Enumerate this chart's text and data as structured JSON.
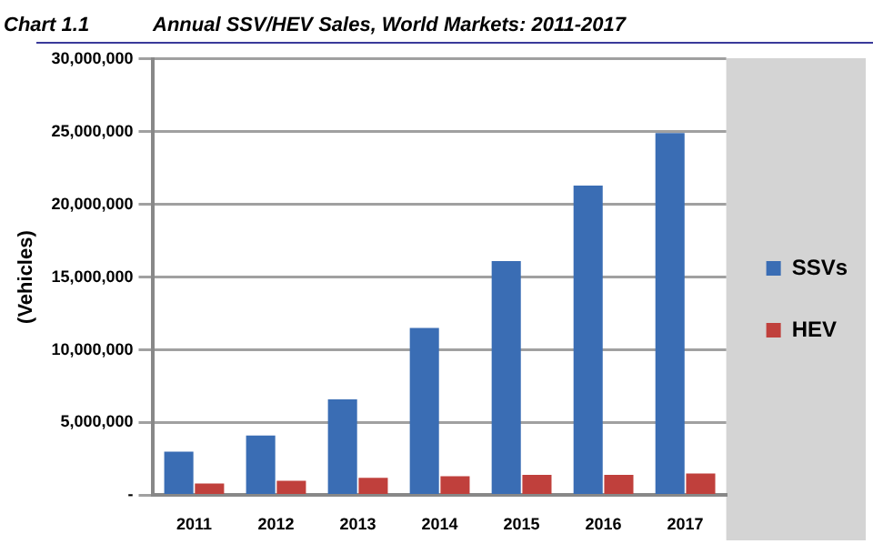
{
  "chart_data": {
    "type": "bar",
    "title": "Chart 1.1",
    "subtitle": "Annual SSV/HEV Sales, World Markets: 2011-2017",
    "ylabel": "(Vehicles)",
    "categories": [
      "2011",
      "2012",
      "2013",
      "2014",
      "2015",
      "2016",
      "2017"
    ],
    "series": [
      {
        "name": "SSVs",
        "color": "#3a6db4",
        "values": [
          3000000,
          4100000,
          6600000,
          11500000,
          16100000,
          21300000,
          24900000
        ]
      },
      {
        "name": "HEV",
        "color": "#c0403c",
        "values": [
          800000,
          1000000,
          1200000,
          1300000,
          1400000,
          1400000,
          1500000
        ]
      }
    ],
    "ylim": [
      0,
      30000000
    ],
    "yticks": [
      {
        "value": 0,
        "label": "-"
      },
      {
        "value": 5000000,
        "label": "5,000,000"
      },
      {
        "value": 10000000,
        "label": "10,000,000"
      },
      {
        "value": 15000000,
        "label": "15,000,000"
      },
      {
        "value": 20000000,
        "label": "20,000,000"
      },
      {
        "value": 25000000,
        "label": "25,000,000"
      },
      {
        "value": 30000000,
        "label": "30,000,000"
      }
    ],
    "grid": "y",
    "legend": "right"
  }
}
